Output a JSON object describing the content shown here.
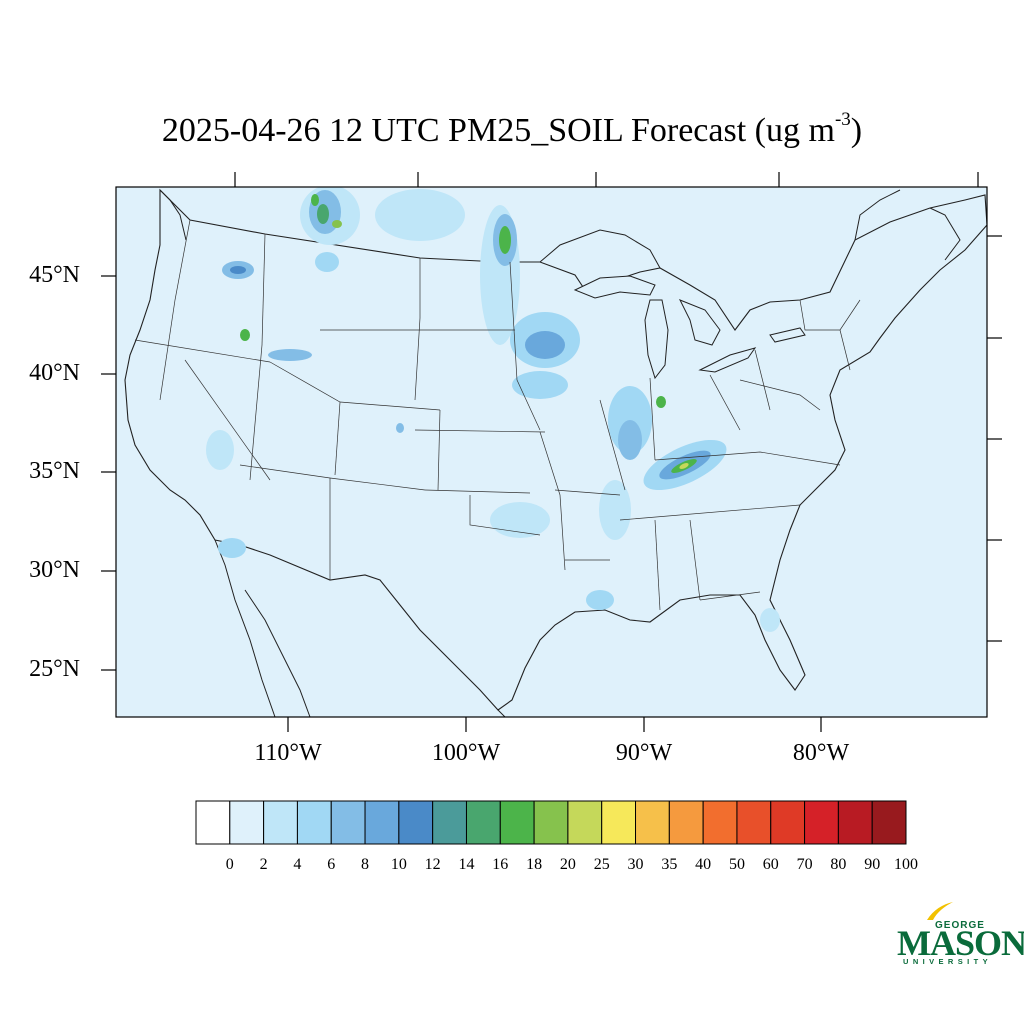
{
  "title": {
    "prefix": "2025-04-26 12 UTC PM25_SOIL Forecast (ug m",
    "exponent": "-3",
    "suffix": ")"
  },
  "map": {
    "projection": "Lambert Conformal",
    "region": "Contiguous United States",
    "ocean_fill": "#dff1fb",
    "boundary_color": "#333333",
    "lat_labels": [
      "45°N",
      "40°N",
      "35°N",
      "30°N",
      "25°N"
    ],
    "lon_labels": [
      "110°W",
      "100°W",
      "90°W",
      "80°W"
    ],
    "plumes": [
      {
        "region": "northern Montana",
        "level": "16-20"
      },
      {
        "region": "eastern North Dakota / Red River Valley",
        "level": "14-18"
      },
      {
        "region": "southeastern Nebraska / Iowa",
        "level": "8-10"
      },
      {
        "region": "western Kentucky",
        "level": "16-20"
      },
      {
        "region": "southern Illinois",
        "level": "16-18"
      },
      {
        "region": "eastern Oregon / Idaho",
        "level": "8-12"
      }
    ]
  },
  "colorbar": {
    "levels": [
      "0",
      "2",
      "4",
      "6",
      "8",
      "10",
      "12",
      "14",
      "16",
      "18",
      "20",
      "25",
      "30",
      "35",
      "40",
      "50",
      "60",
      "70",
      "80",
      "90",
      "100"
    ],
    "colors": [
      "#ffffff",
      "#dff1fb",
      "#bfe6f8",
      "#a1d8f4",
      "#83bde6",
      "#69a8dc",
      "#4a8ac8",
      "#4b9b9a",
      "#49a66e",
      "#4cb44a",
      "#86c24d",
      "#c5d85a",
      "#f6e85a",
      "#f6c04a",
      "#f59a3e",
      "#f26e2e",
      "#e8502a",
      "#df3a26",
      "#d52128",
      "#b81b23",
      "#981a1e"
    ]
  },
  "logo": {
    "line1": "GEORGE",
    "line2": "MASON",
    "line3": "UNIVERSITY",
    "color": "#0a6b3b",
    "accent": "#f2c100"
  }
}
